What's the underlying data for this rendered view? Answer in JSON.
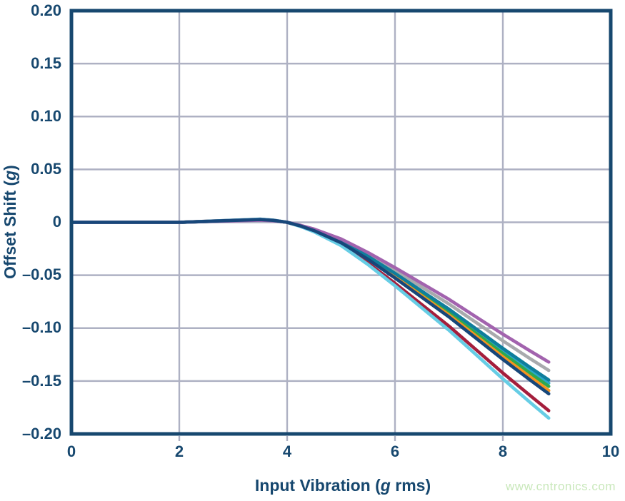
{
  "watermark": {
    "text": "www.cntronics.com",
    "color": "#C9E8BB"
  },
  "chart_data": {
    "type": "line",
    "title": "",
    "xlabel": "Input Vibration (g rms)",
    "ylabel": "Offset Shift (g)",
    "xlabel_parts": [
      "Input Vibration (",
      "g",
      " rms)"
    ],
    "ylabel_parts": [
      "Offset Shift (",
      "g",
      ")"
    ],
    "xlim": [
      0,
      10
    ],
    "ylim": [
      -0.2,
      0.2
    ],
    "grid": true,
    "legend_position": "none",
    "colors": {
      "axis": "#17486F",
      "grid": "#AEB1C3",
      "tick_text": "#17486F"
    },
    "xticks": [
      "0",
      "2",
      "4",
      "6",
      "8",
      "10"
    ],
    "yticks": [
      "0.20",
      "0.15",
      "0.10",
      "0.05",
      "0",
      "–0.05",
      "–0.10",
      "–0.15",
      "–0.20"
    ],
    "grid_x": [
      2,
      4,
      6,
      8
    ],
    "grid_y": [
      0.15,
      0.1,
      0.05,
      0,
      -0.05,
      -0.1,
      -0.15
    ],
    "x": [
      0,
      0.5,
      1,
      1.5,
      2,
      2.5,
      3,
      3.5,
      3.75,
      4,
      4.25,
      4.5,
      5,
      5.5,
      6,
      6.5,
      7,
      7.5,
      8,
      8.5,
      8.85
    ],
    "series": [
      {
        "name": "gray",
        "color": "#A8AAAD",
        "values": [
          0,
          0,
          0,
          0,
          0,
          0.0008,
          0.0015,
          0.0023,
          0.0015,
          0,
          -0.003,
          -0.0068,
          -0.0167,
          -0.0303,
          -0.0454,
          -0.0613,
          -0.0772,
          -0.0946,
          -0.112,
          -0.1287,
          -0.14
        ]
      },
      {
        "name": "light-teal",
        "color": "#29A8C9",
        "values": [
          0,
          0,
          0,
          0,
          0,
          0.0008,
          0.0016,
          0.0025,
          0.0016,
          0,
          -0.0033,
          -0.0074,
          -0.0181,
          -0.0329,
          -0.0493,
          -0.0666,
          -0.0838,
          -0.1028,
          -0.1217,
          -0.1397,
          -0.152
        ]
      },
      {
        "name": "green",
        "color": "#2FA84F",
        "values": [
          0,
          0,
          0,
          0,
          0,
          0.0008,
          0.0017,
          0.0025,
          0.0017,
          0,
          -0.0034,
          -0.0075,
          -0.0184,
          -0.0335,
          -0.0503,
          -0.0679,
          -0.0855,
          -0.1048,
          -0.124,
          -0.1425,
          -0.155
        ]
      },
      {
        "name": "orange",
        "color": "#F7941E",
        "values": [
          0,
          0,
          0,
          0,
          0,
          0.0009,
          0.0017,
          0.0026,
          0.0017,
          0,
          -0.0034,
          -0.0077,
          -0.0189,
          -0.0344,
          -0.0515,
          -0.0696,
          -0.0876,
          -0.1074,
          -0.1271,
          -0.146,
          -0.159
        ]
      },
      {
        "name": "dark-teal",
        "color": "#0F7E9C",
        "values": [
          0,
          0,
          0,
          0,
          0,
          0.0008,
          0.0016,
          0.0024,
          0.0016,
          0,
          -0.0032,
          -0.0072,
          -0.0177,
          -0.0322,
          -0.0483,
          -0.0652,
          -0.0821,
          -0.1006,
          -0.1191,
          -0.1369,
          -0.149
        ]
      },
      {
        "name": "crimson",
        "color": "#A41E3C",
        "values": [
          0,
          0,
          0,
          0,
          0,
          0.001,
          0.0019,
          0.0029,
          0.0019,
          0,
          -0.0038,
          -0.0087,
          -0.0212,
          -0.0385,
          -0.0577,
          -0.0779,
          -0.0981,
          -0.1203,
          -0.1424,
          -0.1635,
          -0.178
        ]
      },
      {
        "name": "light-blue",
        "color": "#66CDE5",
        "values": [
          0,
          0,
          0,
          0,
          0,
          0.001,
          0.002,
          0.003,
          0.002,
          0,
          -0.004,
          -0.009,
          -0.022,
          -0.04,
          -0.06,
          -0.081,
          -0.102,
          -0.125,
          -0.148,
          -0.17,
          -0.185
        ]
      },
      {
        "name": "purple",
        "color": "#A263AE",
        "values": [
          0,
          0,
          0,
          0,
          0,
          0.0007,
          0.0014,
          0.0021,
          0.0014,
          0,
          -0.0029,
          -0.0064,
          -0.0157,
          -0.0286,
          -0.0428,
          -0.0578,
          -0.0728,
          -0.0893,
          -0.1057,
          -0.1214,
          -0.1321
        ]
      },
      {
        "name": "navy",
        "color": "#17477A",
        "values": [
          0,
          0,
          0,
          0,
          0,
          0.0009,
          0.0018,
          0.0026,
          0.0018,
          0,
          -0.0035,
          -0.0079,
          -0.0193,
          -0.035,
          -0.0526,
          -0.071,
          -0.0894,
          -0.1095,
          -0.1296,
          -0.1489,
          -0.162
        ]
      }
    ]
  }
}
